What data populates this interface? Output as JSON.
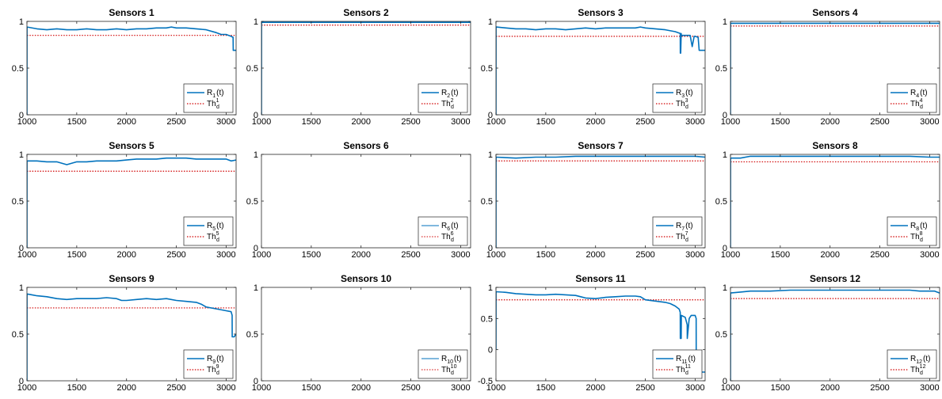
{
  "figure": {
    "background": "#ffffff",
    "colors": {
      "series": "#0072BD",
      "threshold": "#D00000",
      "axis": "#262626"
    }
  },
  "chart_data": [
    {
      "type": "line",
      "title": "Sensors 1",
      "xlim": [
        1000,
        3100
      ],
      "ylim": [
        0,
        1
      ],
      "xticks": [
        "1000",
        "1500",
        "2000",
        "2500",
        "3000"
      ],
      "yticks": [
        "0",
        "0.5",
        "1"
      ],
      "legend": {
        "position": "bottom-right",
        "entries": [
          {
            "label": "R",
            "sub": "1",
            "suffix": "(t)"
          },
          {
            "label": "Th",
            "sub": "d",
            "sup": "1"
          }
        ]
      },
      "threshold": 0.85,
      "series": [
        {
          "x": [
            1000,
            1001,
            1100,
            1200,
            1300,
            1400,
            1500,
            1600,
            1700,
            1800,
            1900,
            2000,
            2100,
            2200,
            2300,
            2400,
            2450,
            2500,
            2600,
            2700,
            2800,
            2900,
            2950,
            3000,
            3050,
            3070,
            3071,
            3100
          ],
          "y": [
            0,
            0.94,
            0.92,
            0.91,
            0.92,
            0.91,
            0.91,
            0.92,
            0.91,
            0.91,
            0.92,
            0.91,
            0.92,
            0.92,
            0.93,
            0.93,
            0.94,
            0.93,
            0.93,
            0.92,
            0.91,
            0.88,
            0.86,
            0.86,
            0.84,
            0.83,
            0.69,
            0.69
          ]
        }
      ]
    },
    {
      "type": "line",
      "title": "Sensors 2",
      "xlim": [
        1000,
        3100
      ],
      "ylim": [
        0,
        1
      ],
      "xticks": [
        "1000",
        "1500",
        "2000",
        "2500",
        "3000"
      ],
      "yticks": [
        "0",
        "0.5",
        "1"
      ],
      "legend": {
        "position": "bottom-right",
        "entries": [
          {
            "label": "R",
            "sub": "2",
            "suffix": "(t)"
          },
          {
            "label": "Th",
            "sub": "d",
            "sup": "2"
          }
        ]
      },
      "threshold": 0.96,
      "series": [
        {
          "x": [
            1000,
            1001,
            1500,
            2000,
            2500,
            3000,
            3100
          ],
          "y": [
            0,
            0.99,
            0.99,
            0.99,
            0.99,
            0.99,
            0.99
          ]
        }
      ]
    },
    {
      "type": "line",
      "title": "Sensors 3",
      "xlim": [
        1000,
        3100
      ],
      "ylim": [
        0,
        1
      ],
      "xticks": [
        "1000",
        "1500",
        "2000",
        "2500",
        "3000"
      ],
      "yticks": [
        "0",
        "0.5",
        "1"
      ],
      "legend": {
        "position": "bottom-right",
        "entries": [
          {
            "label": "R",
            "sub": "3",
            "suffix": "(t)"
          },
          {
            "label": "Th",
            "sub": "d",
            "sup": "3"
          }
        ]
      },
      "threshold": 0.84,
      "series": [
        {
          "x": [
            1000,
            1001,
            1100,
            1200,
            1300,
            1400,
            1500,
            1600,
            1700,
            1800,
            1900,
            2000,
            2100,
            2200,
            2300,
            2400,
            2450,
            2500,
            2600,
            2700,
            2800,
            2850,
            2851,
            2855,
            2860,
            2861,
            2900,
            2950,
            2970,
            2990,
            3000,
            3030,
            3040,
            3100
          ],
          "y": [
            0,
            0.94,
            0.93,
            0.92,
            0.92,
            0.91,
            0.92,
            0.92,
            0.91,
            0.92,
            0.93,
            0.92,
            0.93,
            0.93,
            0.93,
            0.93,
            0.94,
            0.93,
            0.92,
            0.91,
            0.89,
            0.87,
            0.66,
            0.66,
            0.87,
            0.85,
            0.85,
            0.85,
            0.73,
            0.84,
            0.84,
            0.83,
            0.69,
            0.69
          ]
        }
      ]
    },
    {
      "type": "line",
      "title": "Sensors 4",
      "xlim": [
        1000,
        3100
      ],
      "ylim": [
        0,
        1
      ],
      "xticks": [
        "1000",
        "1500",
        "2000",
        "2500",
        "3000"
      ],
      "yticks": [
        "0",
        "0.5",
        "1"
      ],
      "legend": {
        "position": "bottom-right",
        "entries": [
          {
            "label": "R",
            "sub": "4",
            "suffix": "(t)"
          },
          {
            "label": "Th",
            "sub": "d",
            "sup": "4"
          }
        ]
      },
      "threshold": 0.95,
      "series": [
        {
          "x": [
            1000,
            1001,
            1500,
            2000,
            2500,
            3000,
            3100
          ],
          "y": [
            0,
            0.98,
            0.98,
            0.98,
            0.98,
            0.98,
            0.98
          ]
        }
      ]
    },
    {
      "type": "line",
      "title": "Sensors 5",
      "xlim": [
        1000,
        3100
      ],
      "ylim": [
        0,
        1
      ],
      "xticks": [
        "1000",
        "1500",
        "2000",
        "2500",
        "3000"
      ],
      "yticks": [
        "0",
        "0.5",
        "1"
      ],
      "legend": {
        "position": "bottom-right",
        "entries": [
          {
            "label": "R",
            "sub": "5",
            "suffix": "(t)"
          },
          {
            "label": "Th",
            "sub": "d",
            "sup": "5"
          }
        ]
      },
      "threshold": 0.82,
      "series": [
        {
          "x": [
            1000,
            1001,
            1100,
            1200,
            1300,
            1400,
            1500,
            1600,
            1700,
            1800,
            1900,
            2000,
            2100,
            2200,
            2300,
            2400,
            2500,
            2600,
            2700,
            2800,
            2900,
            3000,
            3050,
            3100
          ],
          "y": [
            0,
            0.93,
            0.93,
            0.92,
            0.92,
            0.89,
            0.92,
            0.92,
            0.93,
            0.93,
            0.93,
            0.94,
            0.95,
            0.95,
            0.95,
            0.96,
            0.96,
            0.96,
            0.95,
            0.95,
            0.95,
            0.95,
            0.93,
            0.94
          ]
        }
      ]
    },
    {
      "type": "line",
      "title": "Sensors 6",
      "xlim": [
        1000,
        3100
      ],
      "ylim": [
        0,
        1
      ],
      "xticks": [
        "1000",
        "1500",
        "2000",
        "2500",
        "3000"
      ],
      "yticks": [
        "0",
        "0.5",
        "1"
      ],
      "legend": {
        "position": "bottom-right",
        "thin": true,
        "entries": [
          {
            "label": "R",
            "sub": "6",
            "suffix": "(t)"
          },
          {
            "label": "Th",
            "sub": "d",
            "sup": "6"
          }
        ]
      },
      "threshold": null,
      "series": []
    },
    {
      "type": "line",
      "title": "Sensors 7",
      "xlim": [
        1000,
        3100
      ],
      "ylim": [
        0,
        1
      ],
      "xticks": [
        "1000",
        "1500",
        "2000",
        "2500",
        "3000"
      ],
      "yticks": [
        "0",
        "0.5",
        "1"
      ],
      "legend": {
        "position": "bottom-right",
        "entries": [
          {
            "label": "R",
            "sub": "7",
            "suffix": "(t)"
          },
          {
            "label": "Th",
            "sub": "d",
            "sup": "7"
          }
        ]
      },
      "threshold": 0.93,
      "series": [
        {
          "x": [
            1000,
            1001,
            1200,
            1400,
            1600,
            1800,
            2000,
            2200,
            2400,
            2600,
            2800,
            3000,
            3100
          ],
          "y": [
            0,
            0.97,
            0.96,
            0.97,
            0.97,
            0.98,
            0.98,
            0.98,
            0.98,
            0.98,
            0.98,
            0.98,
            0.97
          ]
        }
      ]
    },
    {
      "type": "line",
      "title": "Sensors 8",
      "xlim": [
        1000,
        3100
      ],
      "ylim": [
        0,
        1
      ],
      "xticks": [
        "1000",
        "1500",
        "2000",
        "2500",
        "3000"
      ],
      "yticks": [
        "0",
        "0.5",
        "1"
      ],
      "legend": {
        "position": "bottom-right",
        "entries": [
          {
            "label": "R",
            "sub": "8",
            "suffix": "(t)"
          },
          {
            "label": "Th",
            "sub": "d",
            "sup": "8"
          }
        ]
      },
      "threshold": 0.92,
      "series": [
        {
          "x": [
            1000,
            1001,
            1100,
            1200,
            1400,
            1600,
            1800,
            2000,
            2200,
            2400,
            2600,
            2800,
            3000,
            3100
          ],
          "y": [
            0,
            0.96,
            0.96,
            0.98,
            0.98,
            0.98,
            0.98,
            0.98,
            0.98,
            0.98,
            0.98,
            0.98,
            0.97,
            0.97
          ]
        }
      ]
    },
    {
      "type": "line",
      "title": "Sensors 9",
      "xlim": [
        1000,
        3100
      ],
      "ylim": [
        0,
        1
      ],
      "xticks": [
        "1000",
        "1500",
        "2000",
        "2500",
        "3000"
      ],
      "yticks": [
        "0",
        "0.5",
        "1"
      ],
      "legend": {
        "position": "bottom-right",
        "entries": [
          {
            "label": "R",
            "sub": "9",
            "suffix": "(t)"
          },
          {
            "label": "Th",
            "sub": "d",
            "sup": "9"
          }
        ]
      },
      "threshold": 0.78,
      "series": [
        {
          "x": [
            1000,
            1001,
            1050,
            1100,
            1200,
            1300,
            1400,
            1500,
            1600,
            1700,
            1800,
            1900,
            1950,
            2000,
            2100,
            2200,
            2300,
            2400,
            2500,
            2600,
            2700,
            2750,
            2800,
            2900,
            3000,
            3050,
            3060,
            3061,
            3080,
            3100
          ],
          "y": [
            0,
            0.93,
            0.92,
            0.91,
            0.9,
            0.88,
            0.87,
            0.88,
            0.88,
            0.88,
            0.89,
            0.88,
            0.86,
            0.86,
            0.87,
            0.88,
            0.87,
            0.88,
            0.86,
            0.85,
            0.84,
            0.82,
            0.79,
            0.77,
            0.75,
            0.74,
            0.7,
            0.47,
            0.47,
            0.5
          ]
        }
      ]
    },
    {
      "type": "line",
      "title": "Sensors 10",
      "xlim": [
        1000,
        3100
      ],
      "ylim": [
        0,
        1
      ],
      "xticks": [
        "1000",
        "1500",
        "2000",
        "2500",
        "3000"
      ],
      "yticks": [
        "0",
        "0.5",
        "1"
      ],
      "legend": {
        "position": "bottom-right",
        "thin": true,
        "entries": [
          {
            "label": "R",
            "sub": "10",
            "suffix": "(t)"
          },
          {
            "label": "Th",
            "sub": "d",
            "sup": "10"
          }
        ]
      },
      "threshold": null,
      "series": []
    },
    {
      "type": "line",
      "title": "Sensors 11",
      "xlim": [
        1000,
        3100
      ],
      "ylim": [
        -0.5,
        1
      ],
      "xticks": [
        "1000",
        "1500",
        "2000",
        "2500",
        "3000"
      ],
      "yticks": [
        "-0.5",
        "0",
        "0.5",
        "1"
      ],
      "legend": {
        "position": "bottom-right",
        "entries": [
          {
            "label": "R",
            "sub": "11",
            "suffix": "(t)"
          },
          {
            "label": "Th",
            "sub": "d",
            "sup": "11"
          }
        ]
      },
      "threshold": 0.8,
      "series": [
        {
          "x": [
            1000,
            1001,
            1100,
            1200,
            1300,
            1400,
            1500,
            1600,
            1700,
            1800,
            1850,
            1900,
            2000,
            2100,
            2200,
            2300,
            2400,
            2450,
            2500,
            2600,
            2700,
            2750,
            2800,
            2840,
            2850,
            2851,
            2860,
            2861,
            2900,
            2920,
            2921,
            2940,
            2960,
            3000,
            3010,
            3011,
            3050,
            3100
          ],
          "y": [
            0,
            0.93,
            0.92,
            0.9,
            0.89,
            0.88,
            0.88,
            0.89,
            0.88,
            0.87,
            0.85,
            0.83,
            0.82,
            0.84,
            0.85,
            0.86,
            0.86,
            0.85,
            0.8,
            0.78,
            0.76,
            0.74,
            0.7,
            0.65,
            0.6,
            0.18,
            0.18,
            0.55,
            0.52,
            0.4,
            0.18,
            0.5,
            0.55,
            0.55,
            0.5,
            -0.36,
            -0.36,
            -0.36
          ]
        }
      ]
    },
    {
      "type": "line",
      "title": "Sensors 12",
      "xlim": [
        1000,
        3100
      ],
      "ylim": [
        0,
        1
      ],
      "xticks": [
        "1000",
        "1500",
        "2000",
        "2500",
        "3000"
      ],
      "yticks": [
        "0",
        "0.5",
        "1"
      ],
      "legend": {
        "position": "bottom-right",
        "entries": [
          {
            "label": "R",
            "sub": "12",
            "suffix": "(t)"
          },
          {
            "label": "Th",
            "sub": "d",
            "sup": "12"
          }
        ]
      },
      "threshold": 0.88,
      "series": [
        {
          "x": [
            1000,
            1001,
            1100,
            1200,
            1400,
            1600,
            1800,
            2000,
            2200,
            2400,
            2600,
            2800,
            2900,
            3000,
            3050,
            3100
          ],
          "y": [
            0,
            0.94,
            0.95,
            0.96,
            0.96,
            0.97,
            0.97,
            0.97,
            0.97,
            0.97,
            0.97,
            0.97,
            0.96,
            0.96,
            0.96,
            0.94
          ]
        }
      ]
    }
  ]
}
